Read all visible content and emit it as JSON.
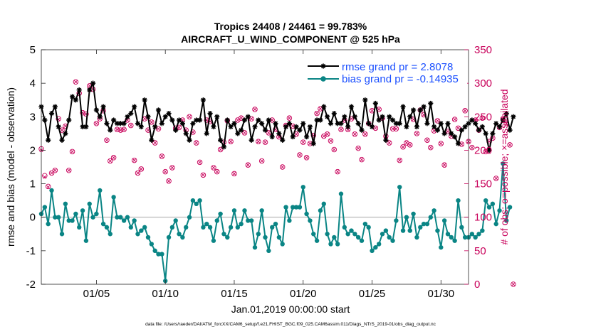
{
  "chart_data": {
    "type": "line",
    "title_line1": "Tropics 24408 / 24461 = 99.783%",
    "title_line2": "AIRCRAFT_U_WIND_COMPONENT @ 525 hPa",
    "xlabel": "Jan.01,2019 00:00:00 start",
    "ylabel": "rmse and bias (model - observation)",
    "ylabel_right": "# of obs: o=possible; ×=assimilated",
    "footnote": "data file: /Users/raeder/DAI/ATM_forcXX/CAM6_setup/f.e21.FHIST_BGC.f09_025.CAM6assim.011/Diags_NTrS_2019-01/obs_diag_output.nc",
    "x_range": [
      1,
      32
    ],
    "ylim": [
      -2,
      5
    ],
    "ylim_right": [
      0,
      350
    ],
    "x_tick_values": [
      5,
      10,
      15,
      20,
      25,
      30
    ],
    "x_tick_labels": [
      "01/05",
      "01/10",
      "01/15",
      "01/20",
      "01/25",
      "01/30"
    ],
    "y_ticks": [
      "-2",
      "-1",
      "0",
      "1",
      "2",
      "3",
      "4",
      "5"
    ],
    "y_ticks_right": [
      "0",
      "50",
      "100",
      "150",
      "200",
      "250",
      "300",
      "350"
    ],
    "x_step_days": 0.25,
    "x_start_day": 1.0,
    "series": [
      {
        "name": "rmse",
        "legend": "rmse grand pr = 2.8078",
        "color": "#000000",
        "values": [
          3.3,
          2.9,
          2.3,
          3.1,
          3.3,
          2.7,
          2.3,
          2.5,
          2.9,
          3.6,
          3.5,
          3.8,
          2.7,
          2.7,
          3.8,
          4.0,
          3.2,
          3.0,
          3.3,
          2.8,
          2.6,
          2.9,
          2.8,
          2.8,
          2.8,
          3.0,
          3.1,
          3.3,
          2.8,
          2.7,
          3.5,
          3.0,
          2.3,
          2.7,
          3.2,
          2.8,
          3.0,
          3.1,
          2.9,
          2.6,
          2.9,
          2.8,
          2.5,
          2.3,
          2.8,
          2.9,
          2.9,
          3.5,
          2.5,
          3.1,
          2.7,
          3.0,
          2.3,
          2.1,
          2.9,
          2.7,
          2.8,
          2.5,
          2.6,
          2.9,
          3.0,
          2.3,
          2.7,
          2.9,
          2.8,
          2.6,
          2.9,
          2.4,
          2.8,
          2.5,
          2.3,
          2.7,
          2.8,
          2.4,
          2.7,
          2.6,
          2.8,
          2.4,
          2.7,
          2.2,
          2.9,
          2.9,
          3.3,
          3.0,
          2.8,
          3.1,
          2.8,
          2.8,
          3.0,
          2.7,
          3.3,
          3.0,
          2.8,
          2.6,
          3.5,
          2.8,
          2.7,
          3.4,
          2.9,
          3.0,
          2.3,
          3.0,
          2.9,
          2.8,
          2.8,
          3.3,
          2.7,
          3.0,
          3.2,
          2.7,
          3.2,
          3.3,
          2.8,
          3.4,
          2.7,
          2.6,
          2.8,
          2.5,
          2.8,
          2.5,
          2.4,
          2.2,
          2.6,
          2.7,
          2.8,
          2.9,
          2.8,
          2.6,
          2.7,
          2.5,
          2.0,
          2.5,
          2.8,
          2.7,
          2.9,
          3.1,
          2.6,
          3.0
        ],
        "marker": "star"
      },
      {
        "name": "bias",
        "legend": "bias grand pr = -0.14935",
        "color": "#0a8585",
        "values": [
          0.1,
          0.3,
          -0.2,
          0.8,
          0.0,
          0.0,
          -0.5,
          0.4,
          -0.1,
          -0.1,
          0.1,
          -0.3,
          0.2,
          -0.7,
          0.4,
          0.0,
          0.1,
          0.8,
          -0.2,
          -0.3,
          -0.5,
          0.6,
          0.0,
          0.0,
          -0.1,
          0.0,
          -0.3,
          -0.1,
          -0.5,
          -0.4,
          -0.3,
          -0.6,
          -0.8,
          -1.0,
          -1.1,
          -1.1,
          -1.9,
          -0.6,
          -0.3,
          -0.1,
          -0.5,
          -0.6,
          -0.3,
          0.0,
          0.5,
          0.4,
          0.5,
          -0.3,
          -0.2,
          -0.3,
          -0.7,
          -0.1,
          0.1,
          -0.5,
          -0.6,
          -0.3,
          0.2,
          -0.3,
          -0.2,
          0.2,
          -0.1,
          -0.1,
          -0.9,
          -0.5,
          0.2,
          -0.6,
          -1.0,
          -0.3,
          -0.2,
          -0.6,
          -0.8,
          0.3,
          -0.1,
          0.3,
          0.3,
          0.3,
          0.9,
          0.1,
          -0.1,
          -0.5,
          -0.7,
          0.2,
          0.4,
          -0.5,
          -0.8,
          -0.6,
          -0.8,
          0.7,
          -0.3,
          -0.5,
          -0.4,
          -0.5,
          -0.6,
          -0.7,
          -0.2,
          -0.3,
          -1.0,
          -0.9,
          -0.8,
          -0.5,
          -0.4,
          -0.6,
          -0.7,
          -0.1,
          0.9,
          -0.4,
          0.0,
          -0.4,
          0.1,
          -0.6,
          -0.3,
          -0.2,
          -0.2,
          0.0,
          0.2,
          -0.4,
          -0.9,
          -0.1,
          -0.5,
          -0.6,
          -0.7,
          0.5,
          -0.3,
          -0.6,
          -0.6,
          -0.5,
          -0.6,
          -0.5,
          -0.4,
          0.5,
          0.3,
          0.4,
          -0.2,
          0.2,
          1.6,
          -0.1,
          0.3
        ],
        "marker": "circle"
      }
    ],
    "obs_possible": [
      202,
      162,
      146,
      166,
      170,
      247,
      230,
      236,
      170,
      198,
      302,
      285,
      256,
      254,
      296,
      291,
      240,
      247,
      259,
      215,
      184,
      189,
      231,
      230,
      231,
      245,
      237,
      185,
      166,
      172,
      247,
      230,
      242,
      211,
      232,
      191,
      168,
      154,
      174,
      233,
      234,
      245,
      230,
      250,
      227,
      211,
      182,
      163,
      245,
      243,
      174,
      168,
      201,
      212,
      244,
      213,
      165,
      245,
      248,
      226,
      178,
      247,
      261,
      213,
      184,
      212,
      226,
      245,
      231,
      220,
      175,
      237,
      248,
      236,
      224,
      193,
      212,
      189,
      210,
      222,
      255,
      262,
      221,
      224,
      214,
      201,
      168,
      231,
      245,
      231,
      247,
      224,
      203,
      186,
      224,
      240,
      259,
      233,
      261,
      248,
      221,
      211,
      232,
      232,
      185,
      205,
      211,
      208,
      246,
      225,
      260,
      253,
      215,
      204,
      229,
      244,
      210,
      178,
      228,
      221,
      246,
      233,
      209,
      259,
      213,
      204,
      245,
      230,
      248,
      198,
      213,
      218,
      158,
      234,
      247,
      240,
      208,
      0
    ],
    "obs_assim": [
      200,
      160,
      145,
      166,
      170,
      246,
      230,
      236,
      170,
      198,
      302,
      285,
      256,
      254,
      296,
      291,
      240,
      247,
      259,
      215,
      184,
      189,
      231,
      230,
      231,
      245,
      237,
      185,
      166,
      172,
      247,
      230,
      242,
      211,
      232,
      191,
      168,
      154,
      174,
      233,
      234,
      245,
      230,
      250,
      227,
      211,
      182,
      163,
      245,
      243,
      174,
      168,
      201,
      212,
      244,
      213,
      165,
      245,
      248,
      226,
      178,
      247,
      261,
      213,
      184,
      212,
      226,
      245,
      231,
      220,
      175,
      237,
      248,
      236,
      224,
      193,
      212,
      189,
      210,
      222,
      255,
      262,
      221,
      224,
      214,
      201,
      168,
      231,
      245,
      231,
      247,
      224,
      203,
      186,
      224,
      240,
      259,
      233,
      261,
      248,
      221,
      211,
      232,
      232,
      185,
      205,
      211,
      208,
      246,
      225,
      260,
      253,
      215,
      204,
      229,
      244,
      210,
      178,
      228,
      221,
      246,
      233,
      209,
      259,
      213,
      204,
      245,
      230,
      248,
      198,
      213,
      218,
      158,
      234,
      247,
      240,
      208,
      0
    ],
    "colors": {
      "rmse": "#000000",
      "bias": "#0a8585",
      "obs": "#c8005a",
      "zero_line": "#c8c8c8",
      "legend_text": "#1a4fff"
    }
  }
}
